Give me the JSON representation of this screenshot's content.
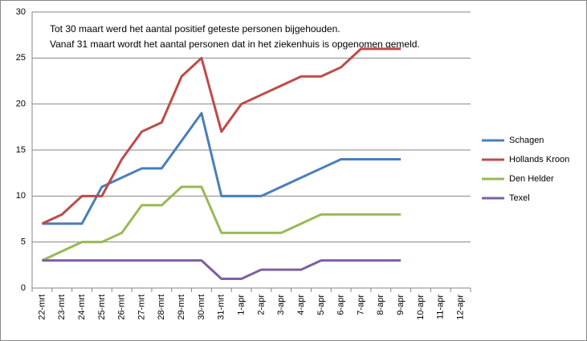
{
  "chart_data": {
    "type": "line",
    "annotations": [
      "Tot 30 maart werd het aantal positief geteste personen bijgehouden.",
      "Vanaf 31 maart wordt het aantal personen dat in het ziekenhuis is opgenomen gemeld."
    ],
    "categories": [
      "22-mrt",
      "23-mrt",
      "24-mrt",
      "25-mrt",
      "26-mrt",
      "27-mrt",
      "28-mrt",
      "29-mrt",
      "30-mrt",
      "31-mrt",
      "1-apr",
      "2-apr",
      "3-apr",
      "4-apr",
      "5-apr",
      "6-apr",
      "7-apr",
      "8-apr",
      "9-apr",
      "10-apr",
      "11-apr",
      "12-apr"
    ],
    "series": [
      {
        "name": "Schagen",
        "color": "#4a7ebb",
        "values": [
          7,
          7,
          7,
          11,
          12,
          13,
          13,
          16,
          19,
          10,
          10,
          10,
          11,
          12,
          13,
          14,
          14,
          14,
          14,
          null,
          null,
          null
        ]
      },
      {
        "name": "Hollands Kroon",
        "color": "#be4b48",
        "values": [
          7,
          8,
          10,
          10,
          14,
          17,
          18,
          23,
          25,
          17,
          20,
          21,
          22,
          23,
          23,
          24,
          26,
          26,
          26,
          null,
          null,
          null
        ]
      },
      {
        "name": "Den Helder",
        "color": "#98b954",
        "values": [
          3,
          4,
          5,
          5,
          6,
          9,
          9,
          11,
          11,
          6,
          6,
          6,
          6,
          7,
          8,
          8,
          8,
          8,
          8,
          null,
          null,
          null
        ]
      },
      {
        "name": "Texel",
        "color": "#7d60a0",
        "values": [
          3,
          3,
          3,
          3,
          3,
          3,
          3,
          3,
          3,
          1,
          1,
          2,
          2,
          2,
          3,
          3,
          3,
          3,
          3,
          null,
          null,
          null
        ]
      }
    ],
    "ylim": [
      0,
      30
    ],
    "yticks": [
      0,
      5,
      10,
      15,
      20,
      25,
      30
    ],
    "grid": true,
    "legend": "right"
  }
}
